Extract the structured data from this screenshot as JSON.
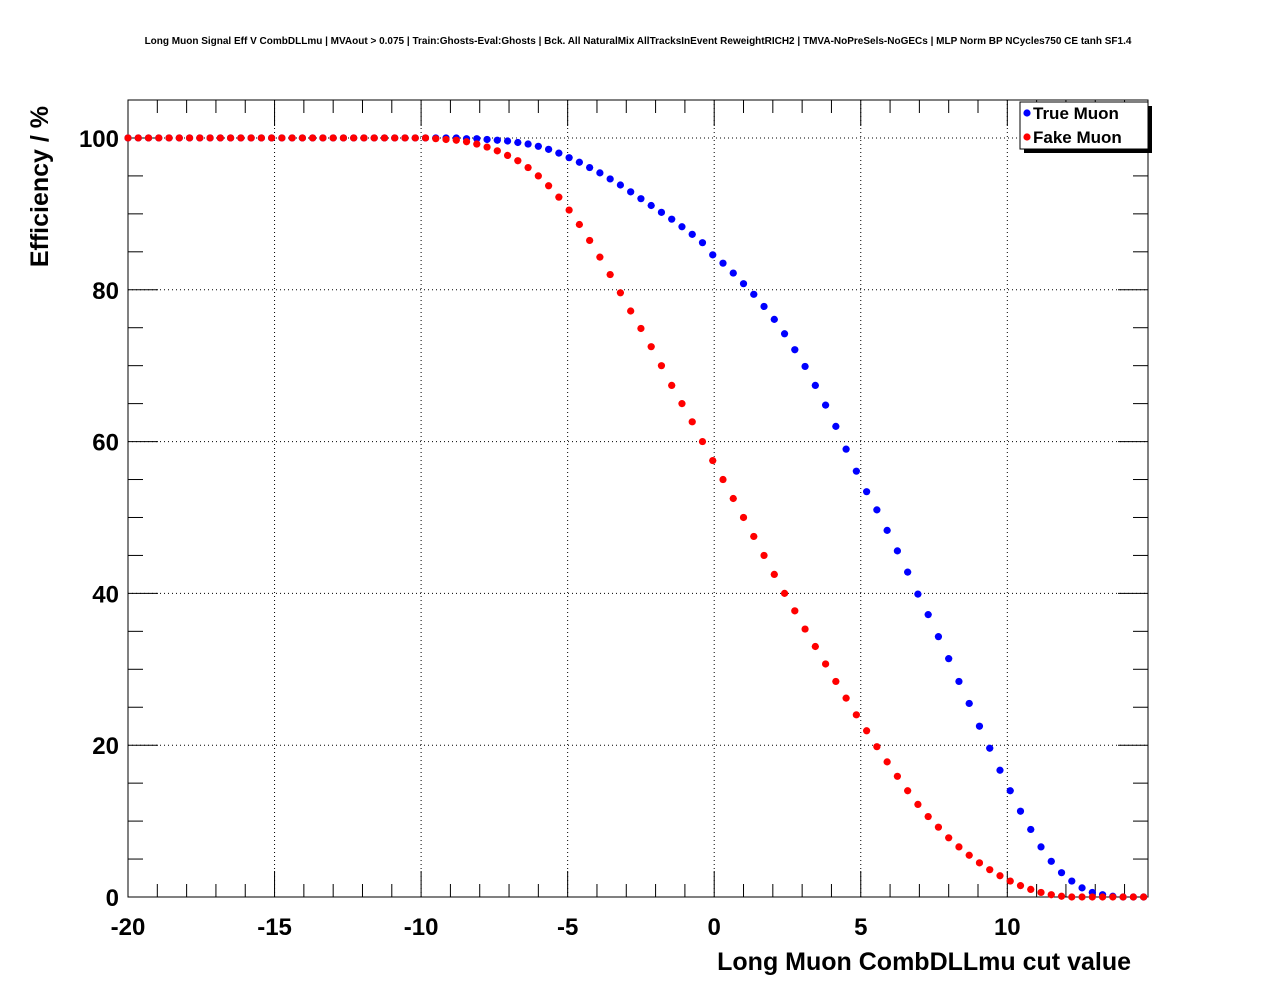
{
  "chart_data": {
    "type": "scatter",
    "title": "Long Muon Signal Eff V CombDLLmu | MVAout > 0.075 | Train:Ghosts-Eval:Ghosts | Bck. All NaturalMix AllTracksInEvent ReweightRICH2 | TMVA-NoPreSels-NoGECs | MLP Norm BP NCycles750 CE tanh SF1.4",
    "xlabel": "Long Muon CombDLLmu cut value",
    "ylabel": "Efficiency / %",
    "xlim": [
      -20,
      14.8
    ],
    "ylim": [
      0,
      105
    ],
    "xticks": [
      -20,
      -15,
      -10,
      -5,
      0,
      5,
      10
    ],
    "yticks": [
      0,
      20,
      40,
      60,
      80,
      100
    ],
    "xtick_labels": [
      "-20",
      "-15",
      "-10",
      "-5",
      "0",
      "5",
      "10"
    ],
    "ytick_labels": [
      "0",
      "20",
      "40",
      "60",
      "80",
      "100"
    ],
    "grid": true,
    "legend_position": "top-right",
    "series": [
      {
        "name": "True Muon",
        "color": "#0000ff",
        "x": [
          -20.0,
          -19.65,
          -19.3,
          -18.95,
          -18.6,
          -18.25,
          -17.9,
          -17.55,
          -17.2,
          -16.85,
          -16.5,
          -16.15,
          -15.8,
          -15.45,
          -15.1,
          -14.75,
          -14.4,
          -14.05,
          -13.7,
          -13.35,
          -13.0,
          -12.65,
          -12.3,
          -11.95,
          -11.6,
          -11.25,
          -10.9,
          -10.55,
          -10.2,
          -9.85,
          -9.5,
          -9.15,
          -8.8,
          -8.45,
          -8.1,
          -7.75,
          -7.4,
          -7.05,
          -6.7,
          -6.35,
          -6.0,
          -5.65,
          -5.3,
          -4.95,
          -4.6,
          -4.25,
          -3.9,
          -3.55,
          -3.2,
          -2.85,
          -2.5,
          -2.15,
          -1.8,
          -1.45,
          -1.1,
          -0.75,
          -0.4,
          -0.05,
          0.3,
          0.65,
          1.0,
          1.35,
          1.7,
          2.05,
          2.4,
          2.75,
          3.1,
          3.45,
          3.8,
          4.15,
          4.5,
          4.85,
          5.2,
          5.55,
          5.9,
          6.25,
          6.6,
          6.95,
          7.3,
          7.65,
          8.0,
          8.35,
          8.7,
          9.05,
          9.4,
          9.75,
          10.1,
          10.45,
          10.8,
          11.15,
          11.5,
          11.85,
          12.2,
          12.55,
          12.9,
          13.25,
          13.6,
          13.95,
          14.3,
          14.65
        ],
        "y": [
          100,
          100,
          100,
          100,
          100,
          100,
          100,
          100,
          100,
          100,
          100,
          100,
          100,
          100,
          100,
          100,
          100,
          100,
          100,
          100,
          100,
          100,
          100,
          100,
          100,
          100,
          100,
          100,
          100,
          100,
          100,
          100,
          100,
          99.9,
          99.9,
          99.8,
          99.7,
          99.6,
          99.4,
          99.2,
          98.9,
          98.5,
          98.0,
          97.4,
          96.8,
          96.1,
          95.4,
          94.6,
          93.8,
          92.9,
          92.0,
          91.1,
          90.2,
          89.3,
          88.3,
          87.3,
          86.2,
          84.6,
          83.5,
          82.2,
          80.8,
          79.4,
          77.8,
          76.1,
          74.2,
          72.1,
          69.9,
          67.4,
          64.8,
          62.0,
          59.0,
          56.1,
          53.4,
          51.0,
          48.3,
          45.6,
          42.8,
          39.9,
          37.2,
          34.3,
          31.4,
          28.4,
          25.5,
          22.5,
          19.6,
          16.7,
          14.0,
          11.3,
          8.9,
          6.6,
          4.7,
          3.2,
          2.1,
          1.2,
          0.6,
          0.3,
          0.1,
          0.0,
          0.0,
          0.0
        ]
      },
      {
        "name": "Fake Muon",
        "color": "#ff0000",
        "x": [
          -20.0,
          -19.65,
          -19.3,
          -18.95,
          -18.6,
          -18.25,
          -17.9,
          -17.55,
          -17.2,
          -16.85,
          -16.5,
          -16.15,
          -15.8,
          -15.45,
          -15.1,
          -14.75,
          -14.4,
          -14.05,
          -13.7,
          -13.35,
          -13.0,
          -12.65,
          -12.3,
          -11.95,
          -11.6,
          -11.25,
          -10.9,
          -10.55,
          -10.2,
          -9.85,
          -9.5,
          -9.15,
          -8.8,
          -8.45,
          -8.1,
          -7.75,
          -7.4,
          -7.05,
          -6.7,
          -6.35,
          -6.0,
          -5.65,
          -5.3,
          -4.95,
          -4.6,
          -4.25,
          -3.9,
          -3.55,
          -3.2,
          -2.85,
          -2.5,
          -2.15,
          -1.8,
          -1.45,
          -1.1,
          -0.75,
          -0.4,
          -0.05,
          0.3,
          0.65,
          1.0,
          1.35,
          1.7,
          2.05,
          2.4,
          2.75,
          3.1,
          3.45,
          3.8,
          4.15,
          4.5,
          4.85,
          5.2,
          5.55,
          5.9,
          6.25,
          6.6,
          6.95,
          7.3,
          7.65,
          8.0,
          8.35,
          8.7,
          9.05,
          9.4,
          9.75,
          10.1,
          10.45,
          10.8,
          11.15,
          11.5,
          11.85,
          12.2,
          12.55,
          12.9,
          13.25,
          13.6,
          13.95,
          14.3,
          14.65
        ],
        "y": [
          100,
          100,
          100,
          100,
          100,
          100,
          100,
          100,
          100,
          100,
          100,
          100,
          100,
          100,
          100,
          100,
          100,
          100,
          100,
          100,
          100,
          100,
          100,
          100,
          100,
          100,
          100,
          100,
          100,
          100,
          99.9,
          99.8,
          99.7,
          99.5,
          99.2,
          98.8,
          98.3,
          97.7,
          97.0,
          96.1,
          95.0,
          93.7,
          92.2,
          90.5,
          88.6,
          86.5,
          84.3,
          82.0,
          79.6,
          77.2,
          74.9,
          72.5,
          70.0,
          67.4,
          65.0,
          62.6,
          60.0,
          57.5,
          55.0,
          52.5,
          50.0,
          47.5,
          45.0,
          42.5,
          40.0,
          37.7,
          35.3,
          33.0,
          30.7,
          28.4,
          26.2,
          24.0,
          21.9,
          19.8,
          17.8,
          15.9,
          14.0,
          12.2,
          10.6,
          9.2,
          7.8,
          6.6,
          5.5,
          4.5,
          3.6,
          2.8,
          2.1,
          1.5,
          1.0,
          0.6,
          0.3,
          0.1,
          0.0,
          0.0,
          0.0,
          0.0,
          0.0,
          0.0,
          0.0,
          0.0
        ]
      }
    ]
  }
}
